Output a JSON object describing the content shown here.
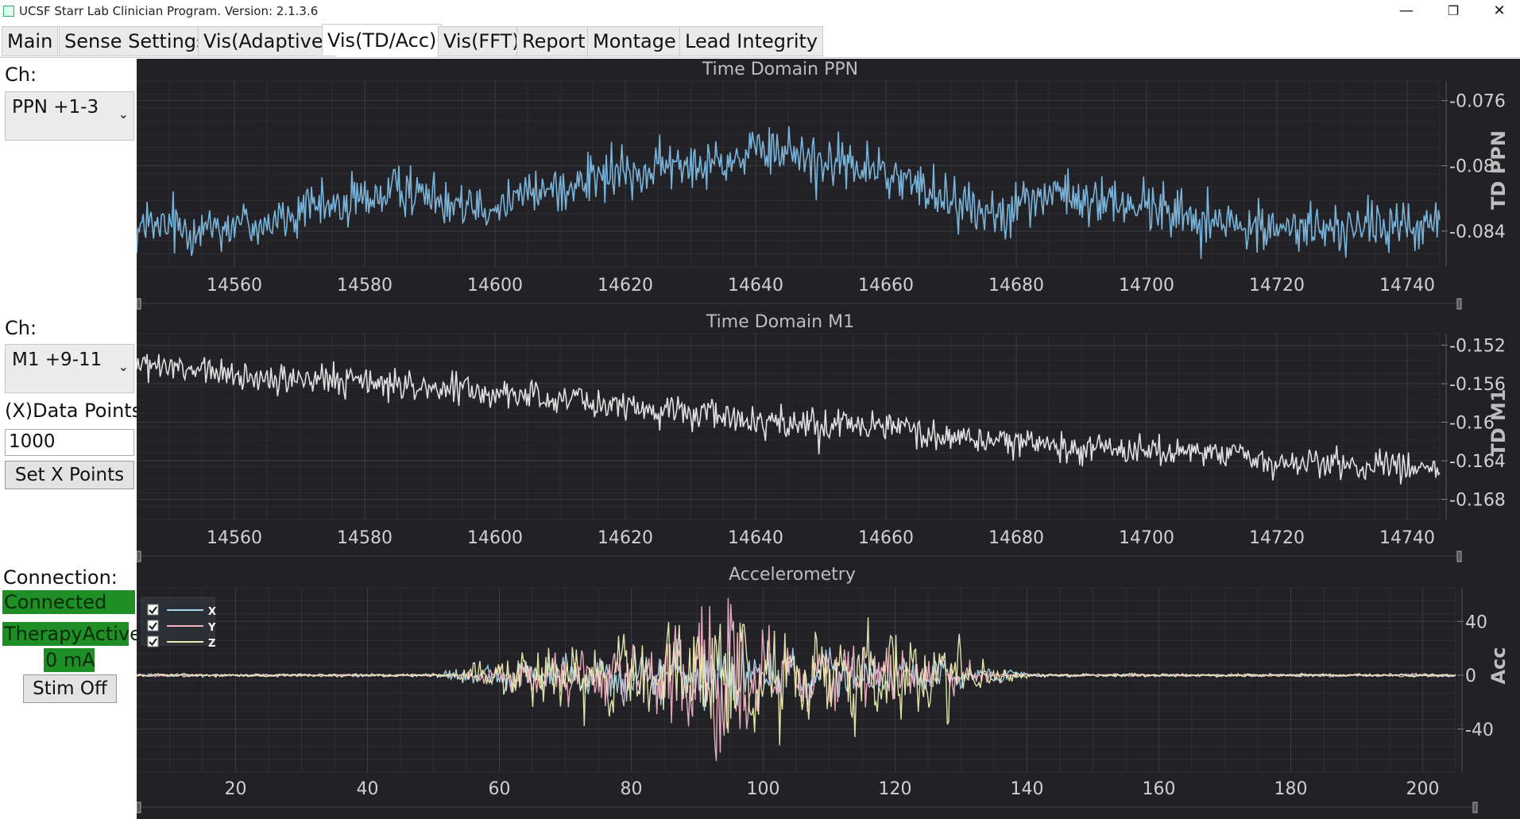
{
  "window": {
    "title": "UCSF Starr Lab Clinician Program. Version: 2.1.3.6",
    "minimize": "—",
    "maximize": "❐",
    "close": "✕"
  },
  "tabs": [
    {
      "label": "Main",
      "active": false
    },
    {
      "label": "Sense Settings",
      "active": false
    },
    {
      "label": "Vis(Adaptive)",
      "active": false
    },
    {
      "label": "Vis(TD/Acc)",
      "active": true
    },
    {
      "label": "Vis(FFT)",
      "active": false
    },
    {
      "label": "Report",
      "active": false
    },
    {
      "label": "Montage",
      "active": false
    },
    {
      "label": "Lead Integrity",
      "active": false
    }
  ],
  "sidebar": {
    "ch1_label": "Ch:",
    "ch1_value": "PPN +1-3",
    "ch2_label": "Ch:",
    "ch2_value": "M1 +9-11",
    "xpoints_label": "(X)Data Points:",
    "xpoints_value": "1000",
    "set_x_button": "Set X Points",
    "connection_label": "Connection:",
    "connection_status": "Connected",
    "therapy_status": "TherapyActive",
    "stim_amplitude": "0  mA",
    "stim_off_button": "Stim Off",
    "status_color": "#1e8f25"
  },
  "chart_data": [
    {
      "type": "line",
      "title": "Time Domain PPN",
      "ylabel": "TD PPN",
      "xlabel": "",
      "xlim": [
        14545,
        14745
      ],
      "ylim": [
        -0.0862,
        -0.0748
      ],
      "xticks": [
        14560,
        14580,
        14600,
        14620,
        14640,
        14660,
        14680,
        14700,
        14720,
        14740
      ],
      "yticks": [
        -0.076,
        -0.08,
        -0.084
      ],
      "ytick_labels": [
        "-0.076",
        "-0.08",
        "-0.084"
      ],
      "series": [
        {
          "color": "#7ab3d9",
          "keypoints": {
            "x": [
              14545,
              14565,
              14585,
              14600,
              14615,
              14630,
              14645,
              14660,
              14675,
              14685,
              14700,
              14715,
              14730,
              14745
            ],
            "y": [
              -0.0839,
              -0.0835,
              -0.0815,
              -0.0823,
              -0.0808,
              -0.0799,
              -0.0791,
              -0.0805,
              -0.0828,
              -0.0818,
              -0.0825,
              -0.0838,
              -0.0838,
              -0.0836
            ]
          }
        }
      ]
    },
    {
      "type": "line",
      "title": "Time Domain M1",
      "ylabel": "TD M1",
      "xlabel": "",
      "xlim": [
        14545,
        14745
      ],
      "ylim": [
        -0.1701,
        -0.1508
      ],
      "xticks": [
        14560,
        14580,
        14600,
        14620,
        14640,
        14660,
        14680,
        14700,
        14720,
        14740
      ],
      "yticks": [
        -0.152,
        -0.156,
        -0.16,
        -0.164,
        -0.168
      ],
      "ytick_labels": [
        "-0.152",
        "-0.156",
        "-0.16",
        "-0.164",
        "-0.168"
      ],
      "series": [
        {
          "color": "#e0e0e0",
          "keypoints": {
            "x": [
              14545,
              14560,
              14580,
              14600,
              14620,
              14640,
              14660,
              14680,
              14700,
              14720,
              14745
            ],
            "y": [
              -0.154,
              -0.1552,
              -0.1558,
              -0.157,
              -0.1583,
              -0.1598,
              -0.1605,
              -0.1622,
              -0.163,
              -0.164,
              -0.1648
            ]
          }
        }
      ]
    },
    {
      "type": "line",
      "title": "Accelerometry",
      "ylabel": "Acc",
      "xlabel": "",
      "xlim": [
        5,
        205
      ],
      "ylim": [
        -72,
        65
      ],
      "xticks": [
        20,
        40,
        60,
        80,
        100,
        120,
        140,
        160,
        180,
        200
      ],
      "yticks": [
        40,
        0,
        -40
      ],
      "ytick_labels": [
        "40",
        "0",
        "-40"
      ],
      "legend": "top-left",
      "series": [
        {
          "name": "X",
          "color": "#a9d6ee",
          "peak": 30,
          "activity": [
            [
              50,
              140
            ]
          ]
        },
        {
          "name": "Y",
          "color": "#f0b2c3",
          "peak": 50,
          "activity": [
            [
              55,
              135
            ]
          ]
        },
        {
          "name": "Z",
          "color": "#ecebb4",
          "peak": 60,
          "activity": [
            [
              52,
              140
            ]
          ]
        }
      ]
    }
  ]
}
